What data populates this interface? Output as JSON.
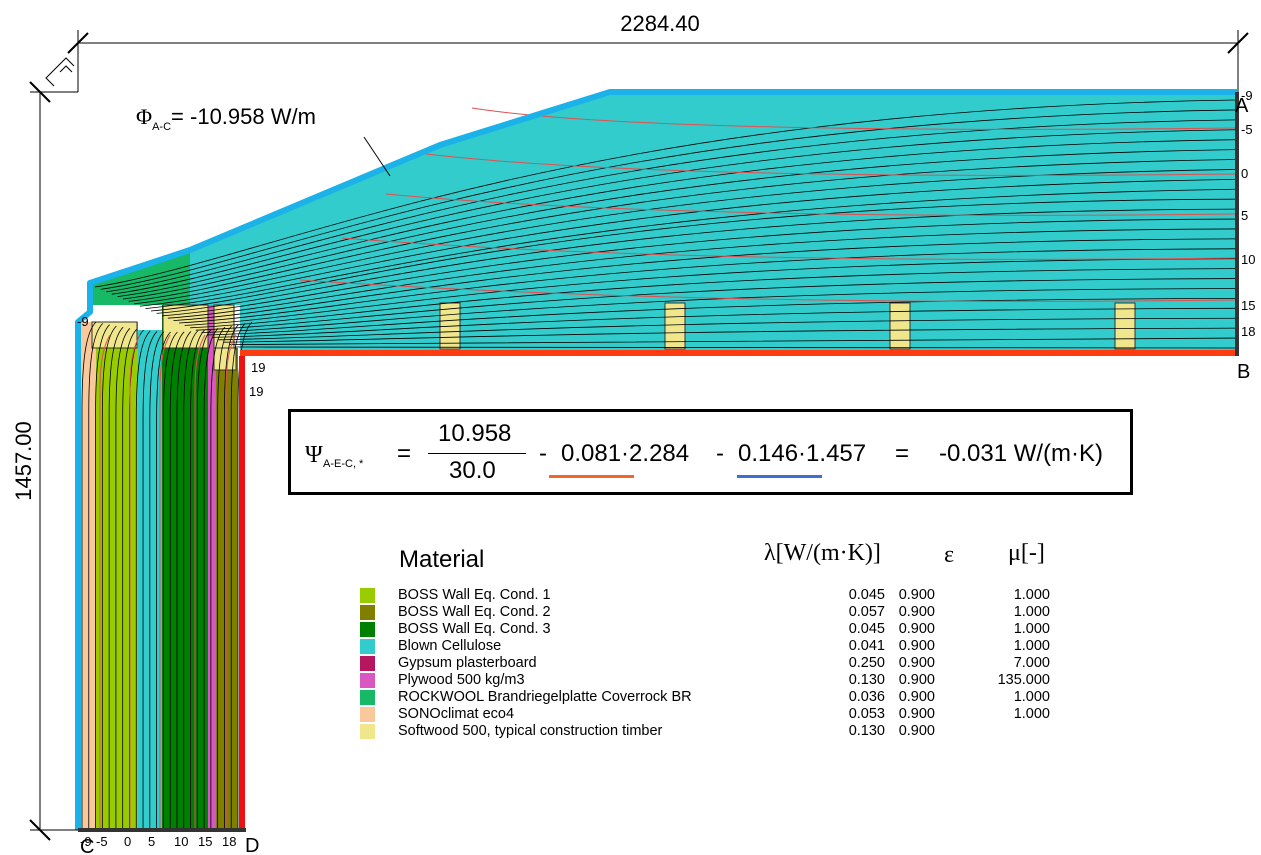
{
  "dimensions": {
    "width": "2284.40",
    "height": "1457.00"
  },
  "points": {
    "a": "A",
    "b": "B",
    "c": "C",
    "d": "D"
  },
  "heat_flow": {
    "symbol": "Φ",
    "subscript": "A-C",
    "value": "= -10.958 W/m"
  },
  "isotherm_labels": {
    "roof": [
      "-9",
      "-5",
      "0",
      "5",
      "10",
      "15",
      "18"
    ],
    "wall": [
      "-9",
      "-5",
      "0",
      "5",
      "10",
      "15",
      "18"
    ],
    "corner": [
      "19",
      "19"
    ],
    "left_edge": "-9"
  },
  "formula": {
    "psi_symbol": "Ψ",
    "psi_subscript": "A-E-C, *",
    "eq1": "=",
    "numerator": "10.958",
    "denominator": "30.0",
    "minus1": "-",
    "term1": "0.081·2.284",
    "minus2": "-",
    "term2": "0.146·1.457",
    "eq2": "=",
    "result": "-0.031 W/(m·K)",
    "term1_color": "#f26522",
    "term2_color": "#3b6fd4"
  },
  "legend": {
    "header_material": "Material",
    "header_lambda": "λ[W/(m·K)]",
    "header_epsilon": "ε",
    "header_mu": "μ[-]",
    "rows": [
      {
        "name": "BOSS Wall Eq. Cond. 1",
        "lambda": "0.045",
        "epsilon": "0.900",
        "mu": "1.000",
        "color": "#99cc00"
      },
      {
        "name": "BOSS Wall Eq. Cond. 2",
        "lambda": "0.057",
        "epsilon": "0.900",
        "mu": "1.000",
        "color": "#808000"
      },
      {
        "name": "BOSS Wall Eq. Cond. 3",
        "lambda": "0.045",
        "epsilon": "0.900",
        "mu": "1.000",
        "color": "#008000"
      },
      {
        "name": "Blown Cellulose",
        "lambda": "0.041",
        "epsilon": "0.900",
        "mu": "1.000",
        "color": "#33cccc"
      },
      {
        "name": "Gypsum plasterboard",
        "lambda": "0.250",
        "epsilon": "0.900",
        "mu": "7.000",
        "color": "#b5165e"
      },
      {
        "name": "Plywood 500 kg/m3",
        "lambda": "0.130",
        "epsilon": "0.900",
        "mu": "135.000",
        "color": "#d957c0"
      },
      {
        "name": "ROCKWOOL Brandriegelplatte Coverrock BR",
        "lambda": "0.036",
        "epsilon": "0.900",
        "mu": "1.000",
        "color": "#17b866"
      },
      {
        "name": "SONOclimat eco4",
        "lambda": "0.053",
        "epsilon": "0.900",
        "mu": "1.000",
        "color": "#f9c89b"
      },
      {
        "name": "Softwood 500, typical construction timber",
        "lambda": "0.130",
        "epsilon": "0.900",
        "mu": "",
        "color": "#f0e68c"
      }
    ]
  },
  "colors": {
    "exterior_boundary": "#1ab2e8",
    "interior_boundary_roof": "#ff3b12",
    "interior_boundary_wall": "#ee1111",
    "isotherm": "#e05050"
  }
}
